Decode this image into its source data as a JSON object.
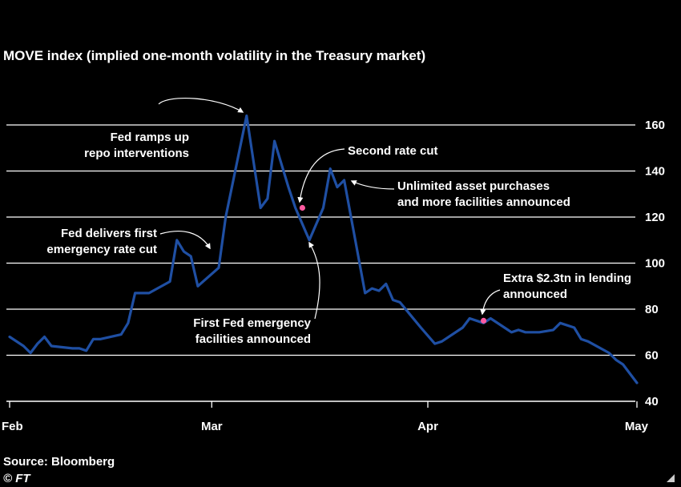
{
  "title": "MOVE index (implied one-month volatility in the Treasury market)",
  "source": "Source: Bloomberg",
  "copyright": "© FT",
  "chart_data": {
    "type": "line",
    "title": "MOVE index (implied one-month volatility in the Treasury market)",
    "xlabel": "",
    "ylabel": "",
    "ylim": [
      40,
      160
    ],
    "yticks": [
      40,
      60,
      80,
      100,
      120,
      140,
      160
    ],
    "xlim": [
      "2020-02-01",
      "2020-05-01"
    ],
    "xticks": [
      {
        "date": "2020-02-01",
        "label": "Feb"
      },
      {
        "date": "2020-03-01",
        "label": "Mar"
      },
      {
        "date": "2020-04-01",
        "label": "Apr"
      },
      {
        "date": "2020-05-01",
        "label": "May"
      }
    ],
    "grid": "horizontal",
    "line_color": "#1f4fa3",
    "marker_color": "#ff5aa0",
    "series": [
      {
        "name": "",
        "points": [
          [
            "2020-02-01",
            68
          ],
          [
            "2020-02-03",
            64
          ],
          [
            "2020-02-04",
            61
          ],
          [
            "2020-02-05",
            65
          ],
          [
            "2020-02-06",
            68
          ],
          [
            "2020-02-07",
            64
          ],
          [
            "2020-02-10",
            63
          ],
          [
            "2020-02-11",
            63
          ],
          [
            "2020-02-12",
            62
          ],
          [
            "2020-02-13",
            67
          ],
          [
            "2020-02-14",
            67
          ],
          [
            "2020-02-17",
            69
          ],
          [
            "2020-02-18",
            74
          ],
          [
            "2020-02-19",
            87
          ],
          [
            "2020-02-20",
            87
          ],
          [
            "2020-02-21",
            87
          ],
          [
            "2020-02-24",
            92
          ],
          [
            "2020-02-25",
            110
          ],
          [
            "2020-02-26",
            105
          ],
          [
            "2020-02-27",
            103
          ],
          [
            "2020-02-28",
            90
          ],
          [
            "2020-03-02",
            98
          ],
          [
            "2020-03-03",
            120
          ],
          [
            "2020-03-06",
            164
          ],
          [
            "2020-03-08",
            124
          ],
          [
            "2020-03-09",
            128
          ],
          [
            "2020-03-10",
            153
          ],
          [
            "2020-03-12",
            133
          ],
          [
            "2020-03-13",
            124
          ],
          [
            "2020-03-15",
            110
          ],
          [
            "2020-03-17",
            124
          ],
          [
            "2020-03-18",
            141
          ],
          [
            "2020-03-19",
            133
          ],
          [
            "2020-03-20",
            136
          ],
          [
            "2020-03-23",
            87
          ],
          [
            "2020-03-24",
            89
          ],
          [
            "2020-03-25",
            88
          ],
          [
            "2020-03-26",
            91
          ],
          [
            "2020-03-27",
            84
          ],
          [
            "2020-03-28",
            83
          ],
          [
            "2020-03-31",
            72
          ],
          [
            "2020-04-02",
            65
          ],
          [
            "2020-04-03",
            66
          ],
          [
            "2020-04-06",
            72
          ],
          [
            "2020-04-07",
            76
          ],
          [
            "2020-04-09",
            74
          ],
          [
            "2020-04-10",
            76
          ],
          [
            "2020-04-13",
            70
          ],
          [
            "2020-04-14",
            71
          ],
          [
            "2020-04-15",
            70
          ],
          [
            "2020-04-17",
            70
          ],
          [
            "2020-04-19",
            71
          ],
          [
            "2020-04-20",
            74
          ],
          [
            "2020-04-22",
            72
          ],
          [
            "2020-04-23",
            67
          ],
          [
            "2020-04-24",
            66
          ],
          [
            "2020-04-27",
            61
          ],
          [
            "2020-04-28",
            58
          ],
          [
            "2020-04-29",
            56
          ],
          [
            "2020-04-30",
            52
          ],
          [
            "2020-05-01",
            48
          ]
        ]
      }
    ],
    "markers": [
      {
        "date": "2020-03-14",
        "value": 124
      },
      {
        "date": "2020-04-09",
        "value": 75
      }
    ],
    "annotations": [
      {
        "lines": [
          "Fed ramps up",
          "repo interventions"
        ],
        "date": "2020-03-06",
        "value": 164
      },
      {
        "lines": [
          "Second rate cut"
        ],
        "date": "2020-03-14",
        "value": 124
      },
      {
        "lines": [
          "Unlimited asset purchases",
          "and more facilities announced"
        ],
        "date": "2020-03-20",
        "value": 135
      },
      {
        "lines": [
          "Fed delivers first",
          "emergency rate cut"
        ],
        "date": "2020-02-27",
        "value": 104
      },
      {
        "lines": [
          "First Fed emergency",
          "facilities announced"
        ],
        "date": "2020-03-15",
        "value": 110
      },
      {
        "lines": [
          "Extra $2.3tn in lending",
          "announced"
        ],
        "date": "2020-04-09",
        "value": 76
      }
    ]
  }
}
